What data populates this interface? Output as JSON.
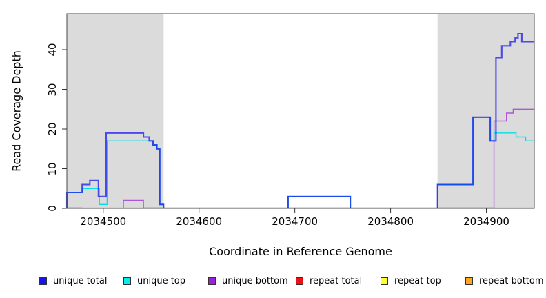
{
  "axes": {
    "x_label": "Coordinate in Reference Genome",
    "y_label": "Read Coverage Depth",
    "x_ticks": [
      {
        "value": 2034500,
        "label": "2034500"
      },
      {
        "value": 2034600,
        "label": "2034600"
      },
      {
        "value": 2034700,
        "label": "2034700"
      },
      {
        "value": 2034800,
        "label": "2034800"
      },
      {
        "value": 2034900,
        "label": "2034900"
      }
    ],
    "y_ticks": [
      {
        "value": 0,
        "label": "0"
      },
      {
        "value": 10,
        "label": "10"
      },
      {
        "value": 20,
        "label": "20"
      },
      {
        "value": 30,
        "label": "30"
      },
      {
        "value": 40,
        "label": "40"
      }
    ]
  },
  "legend": [
    {
      "key": "unique_total",
      "label": "unique total",
      "color": "#1414EE"
    },
    {
      "key": "unique_top",
      "label": "unique top",
      "color": "#00EEEE"
    },
    {
      "key": "unique_bottom",
      "label": "unique bottom",
      "color": "#9D1FD8"
    },
    {
      "key": "repeat_total",
      "label": "repeat total",
      "color": "#EE1111"
    },
    {
      "key": "repeat_top",
      "label": "repeat top",
      "color": "#FFFF33"
    },
    {
      "key": "repeat_bottom",
      "label": "repeat bottom",
      "color": "#FFA51E"
    }
  ],
  "chart_data": {
    "type": "line",
    "subtype": "step-coverage",
    "x_range": [
      2034462,
      2034950
    ],
    "y_range": [
      0,
      49
    ],
    "grid": false,
    "legend_position": "bottom",
    "shaded_regions": [
      {
        "from": 2034462,
        "to": 2034563,
        "color": "#DBDBDB"
      },
      {
        "from": 2034849,
        "to": 2034950,
        "color": "#DBDBDB"
      }
    ],
    "colors": {
      "unique_total": "#1A1AEE",
      "unique_top": "#00E0E8",
      "unique_bottom": "#AD55DC",
      "repeat_total": "#E0294D",
      "repeat_top": "#FFFF33",
      "repeat_bottom": "#FFA51E",
      "zero_blend": "#7B6FE8",
      "shade": "#DBDBDB"
    },
    "series": [
      {
        "name": "unique total",
        "key": "unique_total",
        "steps": [
          [
            2034462,
            4
          ],
          [
            2034478,
            6
          ],
          [
            2034486,
            7
          ],
          [
            2034495,
            3
          ],
          [
            2034503,
            19
          ],
          [
            2034542,
            18
          ],
          [
            2034548,
            17
          ],
          [
            2034552,
            16
          ],
          [
            2034556,
            15
          ],
          [
            2034559,
            1
          ],
          [
            2034563,
            0
          ],
          [
            2034693,
            3
          ],
          [
            2034758,
            0
          ],
          [
            2034849,
            6
          ],
          [
            2034886,
            23
          ],
          [
            2034904,
            17
          ],
          [
            2034910,
            38
          ],
          [
            2034916,
            41
          ],
          [
            2034925,
            42
          ],
          [
            2034930,
            43
          ],
          [
            2034933,
            44
          ],
          [
            2034937,
            42
          ],
          [
            2034950,
            42
          ]
        ]
      },
      {
        "name": "unique top",
        "key": "unique_top",
        "steps": [
          [
            2034462,
            4
          ],
          [
            2034478,
            5
          ],
          [
            2034496,
            1
          ],
          [
            2034504,
            17
          ],
          [
            2034552,
            16
          ],
          [
            2034556,
            15
          ],
          [
            2034559,
            1
          ],
          [
            2034563,
            0
          ],
          [
            2034693,
            3
          ],
          [
            2034758,
            0
          ],
          [
            2034849,
            6
          ],
          [
            2034886,
            23
          ],
          [
            2034904,
            17
          ],
          [
            2034908,
            19
          ],
          [
            2034931,
            18
          ],
          [
            2034941,
            17
          ],
          [
            2034950,
            17
          ]
        ]
      },
      {
        "name": "unique bottom",
        "key": "unique_bottom",
        "steps": [
          [
            2034462,
            0
          ],
          [
            2034521,
            2
          ],
          [
            2034542,
            0
          ],
          [
            2034908,
            22
          ],
          [
            2034921,
            24
          ],
          [
            2034928,
            25
          ],
          [
            2034950,
            25
          ]
        ]
      },
      {
        "name": "repeat total",
        "key": "repeat_total",
        "steps": [
          [
            2034462,
            0
          ],
          [
            2034950,
            0
          ]
        ]
      },
      {
        "name": "repeat top",
        "key": "repeat_top",
        "steps": [
          [
            2034462,
            0
          ],
          [
            2034950,
            0
          ]
        ]
      },
      {
        "name": "repeat bottom",
        "key": "repeat_bottom",
        "steps": [
          [
            2034462,
            0
          ],
          [
            2034950,
            0
          ]
        ]
      }
    ],
    "zero_line_segments": [
      {
        "from": 2034462,
        "to": 2034478,
        "color_key": "repeat_total"
      },
      {
        "from": 2034478,
        "to": 2034542,
        "color_key": "repeat_bottom"
      },
      {
        "from": 2034542,
        "to": 2034563,
        "color_key": "repeat_total"
      },
      {
        "from": 2034563,
        "to": 2034693,
        "color_key": "zero_blend"
      },
      {
        "from": 2034693,
        "to": 2034758,
        "color_key": "repeat_total"
      },
      {
        "from": 2034758,
        "to": 2034849,
        "color_key": "zero_blend"
      },
      {
        "from": 2034849,
        "to": 2034908,
        "color_key": "repeat_total"
      },
      {
        "from": 2034908,
        "to": 2034950,
        "color_key": "repeat_bottom"
      }
    ]
  }
}
